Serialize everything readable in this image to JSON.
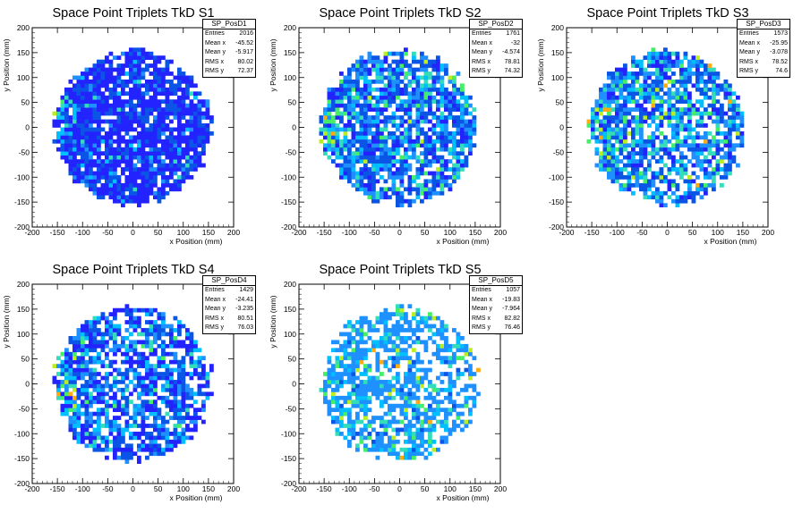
{
  "palette": [
    "#ffffff",
    "#2323ff",
    "#0a55e6",
    "#1e90ff",
    "#00bfff",
    "#33ddbb",
    "#44ee66",
    "#bbee22",
    "#ffaa11",
    "#ee2222"
  ],
  "chart_data": [
    {
      "type": "heatmap",
      "title": "Space Point Triplets TkD S1",
      "xlabel": "x Position (mm)",
      "ylabel": "y Position (mm)",
      "xlim": [
        -200,
        200
      ],
      "ylim": [
        -200,
        200
      ],
      "xticks": [
        "-200",
        "-150",
        "-100",
        "-50",
        "0",
        "50",
        "100",
        "150",
        "200"
      ],
      "yticks": [
        "200",
        "150",
        "100",
        "50",
        "0",
        "-50",
        "-100",
        "-150",
        "-200"
      ],
      "bins": 50,
      "disc_radius": 155,
      "stats": {
        "name": "SP_PosD1",
        "rows": [
          {
            "label": "Entries",
            "value": "2016"
          },
          {
            "label": "Mean x",
            "value": "-45.52"
          },
          {
            "label": "Mean y",
            "value": "-5.917"
          },
          {
            "label": "RMS x",
            "value": "80.02"
          },
          {
            "label": "RMS y",
            "value": "72.37"
          }
        ]
      },
      "fill_fraction": 0.85,
      "level_weights": [
        0.62,
        0.28,
        0.07,
        0.02,
        0.01,
        0,
        0,
        0
      ],
      "hot_region": "left edge",
      "seed": 11
    },
    {
      "type": "heatmap",
      "title": "Space Point Triplets TkD S2",
      "xlabel": "x Position (mm)",
      "ylabel": "y Position (mm)",
      "xlim": [
        -200,
        200
      ],
      "ylim": [
        -200,
        200
      ],
      "xticks": [
        "-200",
        "-150",
        "-100",
        "-50",
        "0",
        "50",
        "100",
        "150",
        "200"
      ],
      "yticks": [
        "200",
        "150",
        "100",
        "50",
        "0",
        "-50",
        "-100",
        "-150",
        "-200"
      ],
      "bins": 50,
      "disc_radius": 155,
      "stats": {
        "name": "SP_PosD2",
        "rows": [
          {
            "label": "Entries",
            "value": "1761"
          },
          {
            "label": "Mean x",
            "value": "-32"
          },
          {
            "label": "Mean y",
            "value": "-4.574"
          },
          {
            "label": "RMS x",
            "value": "78.81"
          },
          {
            "label": "RMS y",
            "value": "74.32"
          }
        ]
      },
      "fill_fraction": 0.74,
      "level_weights": [
        0.18,
        0.34,
        0.22,
        0.12,
        0.1,
        0.03,
        0.01,
        0
      ],
      "hot_region": "left edge",
      "seed": 23
    },
    {
      "type": "heatmap",
      "title": "Space Point Triplets TkD S3",
      "xlabel": "x Position (mm)",
      "ylabel": "y Position (mm)",
      "xlim": [
        -200,
        200
      ],
      "ylim": [
        -200,
        200
      ],
      "xticks": [
        "-200",
        "-150",
        "-100",
        "-50",
        "0",
        "50",
        "100",
        "150",
        "200"
      ],
      "yticks": [
        "200",
        "150",
        "100",
        "50",
        "0",
        "-50",
        "-100",
        "-150",
        "-200"
      ],
      "bins": 50,
      "disc_radius": 155,
      "stats": {
        "name": "SP_PosD3",
        "rows": [
          {
            "label": "Entries",
            "value": "1573"
          },
          {
            "label": "Mean x",
            "value": "-25.95"
          },
          {
            "label": "Mean y",
            "value": "-3.078"
          },
          {
            "label": "RMS x",
            "value": "78.52"
          },
          {
            "label": "RMS y",
            "value": "74.6"
          }
        ]
      },
      "fill_fraction": 0.7,
      "level_weights": [
        0.12,
        0.3,
        0.24,
        0.14,
        0.12,
        0.05,
        0.02,
        0.01
      ],
      "hot_region": "left edge",
      "seed": 37
    },
    {
      "type": "heatmap",
      "title": "Space Point Triplets TkD S4",
      "xlabel": "x Position (mm)",
      "ylabel": "y Position (mm)",
      "xlim": [
        -200,
        200
      ],
      "ylim": [
        -200,
        200
      ],
      "xticks": [
        "-200",
        "-150",
        "-100",
        "-50",
        "0",
        "50",
        "100",
        "150",
        "200"
      ],
      "yticks": [
        "200",
        "150",
        "100",
        "50",
        "0",
        "-50",
        "-100",
        "-150",
        "-200"
      ],
      "bins": 50,
      "disc_radius": 155,
      "stats": {
        "name": "SP_PosD4",
        "rows": [
          {
            "label": "Entries",
            "value": "1429"
          },
          {
            "label": "Mean x",
            "value": "-24.41"
          },
          {
            "label": "Mean y",
            "value": "-3.235"
          },
          {
            "label": "RMS x",
            "value": "80.51"
          },
          {
            "label": "RMS y",
            "value": "76.03"
          }
        ]
      },
      "fill_fraction": 0.68,
      "level_weights": [
        0.32,
        0.3,
        0.2,
        0.12,
        0.05,
        0.01,
        0,
        0
      ],
      "hot_region": "left edge",
      "seed": 41
    },
    {
      "type": "heatmap",
      "title": "Space Point Triplets TkD S5",
      "xlabel": "x Position (mm)",
      "ylabel": "y Position (mm)",
      "xlim": [
        -200,
        200
      ],
      "ylim": [
        -200,
        200
      ],
      "xticks": [
        "-200",
        "-150",
        "-100",
        "-50",
        "0",
        "50",
        "100",
        "150",
        "200"
      ],
      "yticks": [
        "200",
        "150",
        "100",
        "50",
        "0",
        "-50",
        "-100",
        "-150",
        "-200"
      ],
      "bins": 50,
      "disc_radius": 155,
      "stats": {
        "name": "SP_PosD5",
        "rows": [
          {
            "label": "Entries",
            "value": "1057"
          },
          {
            "label": "Mean x",
            "value": "-19.83"
          },
          {
            "label": "Mean y",
            "value": "-7.964"
          },
          {
            "label": "RMS x",
            "value": "82.82"
          },
          {
            "label": "RMS y",
            "value": "76.46"
          }
        ]
      },
      "fill_fraction": 0.55,
      "level_weights": [
        0,
        0.05,
        0.6,
        0.15,
        0.1,
        0.06,
        0.03,
        0.01
      ],
      "hot_region": "scattered",
      "seed": 53
    }
  ]
}
